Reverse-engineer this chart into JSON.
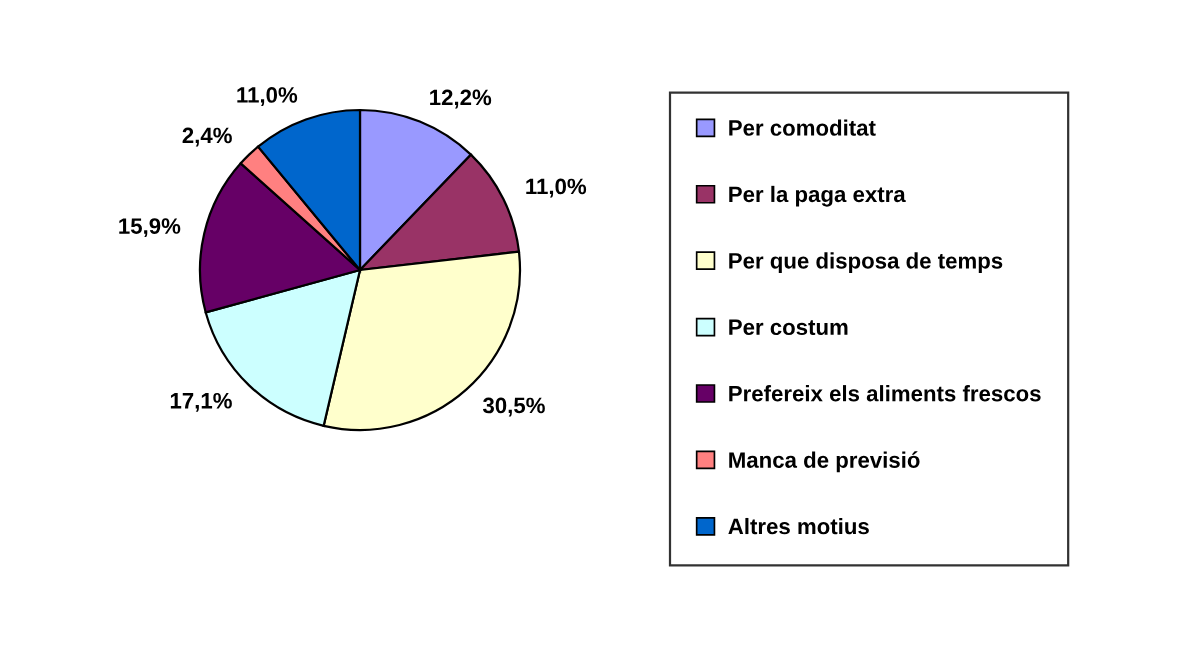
{
  "chart_data": {
    "type": "pie",
    "categories": [
      "Per comoditat",
      "Per la paga extra",
      "Per que disposa de temps",
      "Per costum",
      "Prefereix els aliments frescos",
      "Manca de previsió",
      "Altres motius"
    ],
    "values": [
      12.2,
      11.0,
      30.5,
      17.1,
      15.9,
      2.4,
      11.0
    ],
    "value_labels": [
      "12,2%",
      "11,0%",
      "30,5%",
      "17,1%",
      "15,9%",
      "2,4%",
      "11,0%"
    ],
    "colors": [
      "#9999ff",
      "#993366",
      "#ffffcc",
      "#ccffff",
      "#660066",
      "#ff8080",
      "#0066cc"
    ],
    "legend": "right"
  }
}
